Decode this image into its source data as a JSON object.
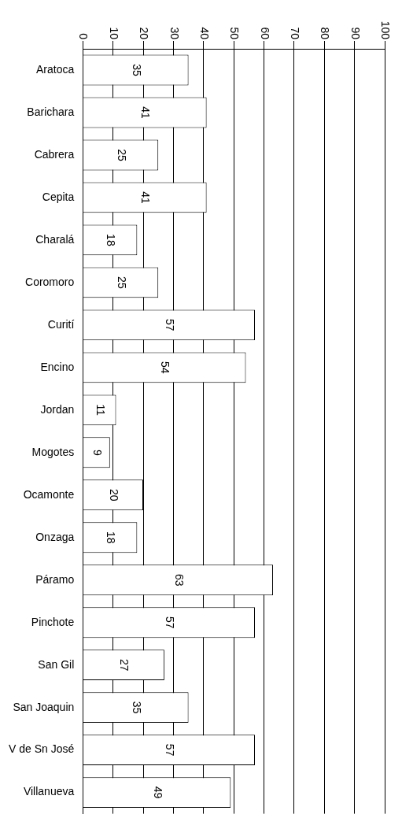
{
  "chart_data": {
    "type": "bar",
    "orientation": "horizontal",
    "categories": [
      "Aratoca",
      "Barichara",
      "Cabrera",
      "Cepita",
      "Charalá",
      "Coromoro",
      "Curití",
      "Encino",
      "Jordan",
      "Mogotes",
      "Ocamonte",
      "Onzaga",
      "Páramo",
      "Pinchote",
      "San Gil",
      "San Joaquin",
      "V de Sn José",
      "Villanueva"
    ],
    "values": [
      35,
      41,
      25,
      41,
      18,
      25,
      57,
      54,
      11,
      9,
      20,
      18,
      63,
      57,
      27,
      35,
      57,
      49
    ],
    "color": "#ffffff",
    "xlim": [
      0,
      100
    ],
    "xticks": [
      0,
      10,
      20,
      30,
      40,
      50,
      60,
      70,
      80,
      90,
      100
    ],
    "grid": "x",
    "data_labels": true,
    "legend": false
  }
}
